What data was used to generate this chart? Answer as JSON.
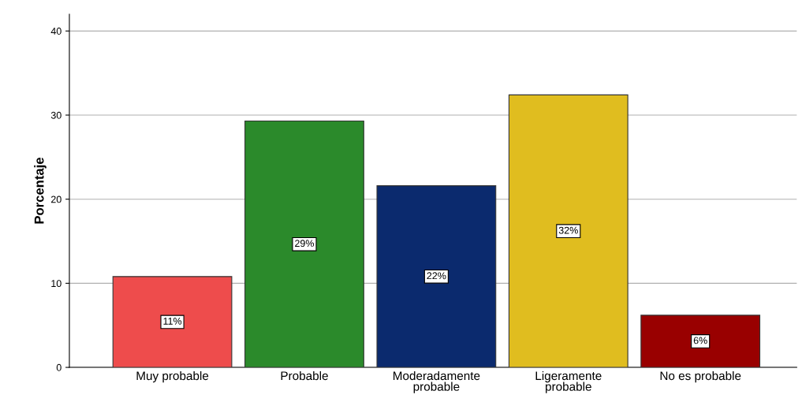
{
  "chart_data": {
    "type": "bar",
    "ylabel": "Porcentaje",
    "categories": [
      "Muy probable",
      "Probable",
      "Moderadamente\nprobable",
      "Ligeramente\nprobable",
      "No es probable"
    ],
    "values": [
      10.8,
      29.3,
      21.6,
      32.4,
      6.2
    ],
    "colors": [
      "#ee4c4c",
      "#2b8a2b",
      "#0b2a6e",
      "#e0bd1f",
      "#990000"
    ],
    "value_labels": [
      "11%",
      "29%",
      "22%",
      "32%",
      "6%"
    ],
    "ylim": [
      0,
      42
    ],
    "yticks": [
      0,
      10,
      20,
      30,
      40
    ],
    "grid": "y"
  }
}
